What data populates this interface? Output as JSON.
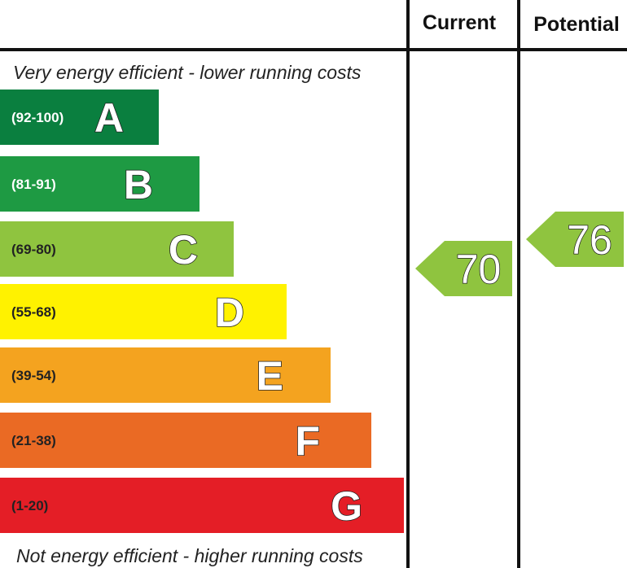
{
  "chart_data": {
    "type": "bar",
    "columns": {
      "current": "Current",
      "potential": "Potential"
    },
    "top_note": "Very energy efficient - lower running costs",
    "bottom_note": "Not energy efficient - higher running costs",
    "bands": [
      {
        "letter": "A",
        "range": "(92-100)",
        "min": 92,
        "max": 100,
        "color": "#0a7f3f",
        "text_color": "#ffffff"
      },
      {
        "letter": "B",
        "range": "(81-91)",
        "min": 81,
        "max": 91,
        "color": "#1e9a43",
        "text_color": "#ffffff"
      },
      {
        "letter": "C",
        "range": "(69-80)",
        "min": 69,
        "max": 80,
        "color": "#8fc43f",
        "text_color": "#222222"
      },
      {
        "letter": "D",
        "range": "(55-68)",
        "min": 55,
        "max": 68,
        "color": "#fff200",
        "text_color": "#222222"
      },
      {
        "letter": "E",
        "range": "(39-54)",
        "min": 39,
        "max": 54,
        "color": "#f4a31f",
        "text_color": "#222222"
      },
      {
        "letter": "F",
        "range": "(21-38)",
        "min": 21,
        "max": 38,
        "color": "#ea6a24",
        "text_color": "#222222"
      },
      {
        "letter": "G",
        "range": "(1-20)",
        "min": 1,
        "max": 20,
        "color": "#e41e26",
        "text_color": "#222222"
      }
    ],
    "current": {
      "value": 70,
      "band": "C"
    },
    "potential": {
      "value": 76,
      "band": "C"
    },
    "indicator_color": "#8fc43f"
  }
}
